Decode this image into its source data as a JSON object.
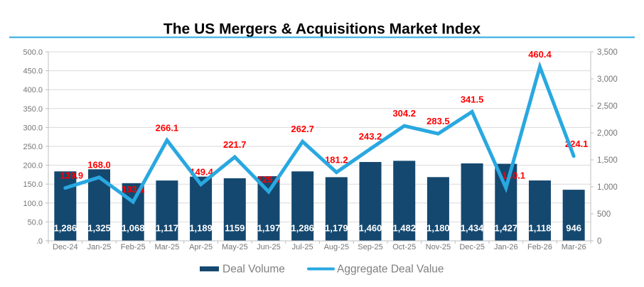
{
  "title": "The US Mergers & Acquisitions Market Index",
  "legend": [
    {
      "label": "Deal Volume",
      "swatch": "bar"
    },
    {
      "label": "Aggregate Deal Value",
      "swatch": "line"
    }
  ],
  "colors": {
    "bar": "#15486F",
    "line": "#29A8E0",
    "point_label": "#FF0000",
    "bar_label": "#FFFFFF",
    "grid": "#D9D9D9",
    "axis": "#BFBFBF",
    "axis_text": "#757575",
    "title_underline": "#29A8E0",
    "legend_text": "#7F7F7F"
  },
  "chart_data": {
    "type": "combo",
    "categories": [
      "Dec-24",
      "Jan-25",
      "Feb-25",
      "Mar-25",
      "Apr-25",
      "May-25",
      "Jun-25",
      "Jul-25",
      "Aug-25",
      "Sep-25",
      "Oct-25",
      "Nov-25",
      "Dec-25",
      "Jan-26",
      "Feb-26",
      "Mar-26"
    ],
    "series": [
      {
        "name": "Deal Volume",
        "type": "bar",
        "axis": "right",
        "values": [
          1286,
          1325,
          1068,
          1117,
          1189,
          1159,
          1197,
          1286,
          1179,
          1460,
          1482,
          1180,
          1434,
          1427,
          1118,
          946
        ],
        "labels": [
          "1,286",
          "1,325",
          "1,068",
          "1,117",
          "1,189",
          "1159",
          "1,197",
          "1,286",
          "1,179",
          "1,460",
          "1,482",
          "1,180",
          "1,434",
          "1,427",
          "1,118",
          "946"
        ]
      },
      {
        "name": "Aggregate Deal Value",
        "type": "line",
        "axis": "left",
        "values": [
          139.9,
          168.0,
          103.1,
          266.1,
          149.4,
          221.7,
          129.9,
          262.7,
          181.2,
          243.2,
          304.2,
          283.5,
          341.5,
          140.1,
          460.4,
          224.1
        ],
        "labels": [
          "139.9",
          "168.0",
          "103.1",
          "266.1",
          "149.4",
          "221.7",
          "129.9",
          "262.7",
          "181.2",
          "243.2",
          "304.2",
          "283.5",
          "341.5",
          "140.1",
          "460.4",
          "224.1"
        ]
      }
    ],
    "left_axis": {
      "min": 0,
      "max": 500,
      "ticks": [
        "500.0",
        "450.0",
        "400.0",
        "350.0",
        "300.0",
        "250.0",
        "200.0",
        "150.0",
        "100.0",
        "50.0",
        ".0"
      ]
    },
    "right_axis": {
      "min": 0,
      "max": 3500,
      "ticks": [
        "3,500",
        "3,000",
        "2,500",
        "2,000",
        "1,500",
        "1,000",
        "500",
        "0"
      ]
    }
  }
}
